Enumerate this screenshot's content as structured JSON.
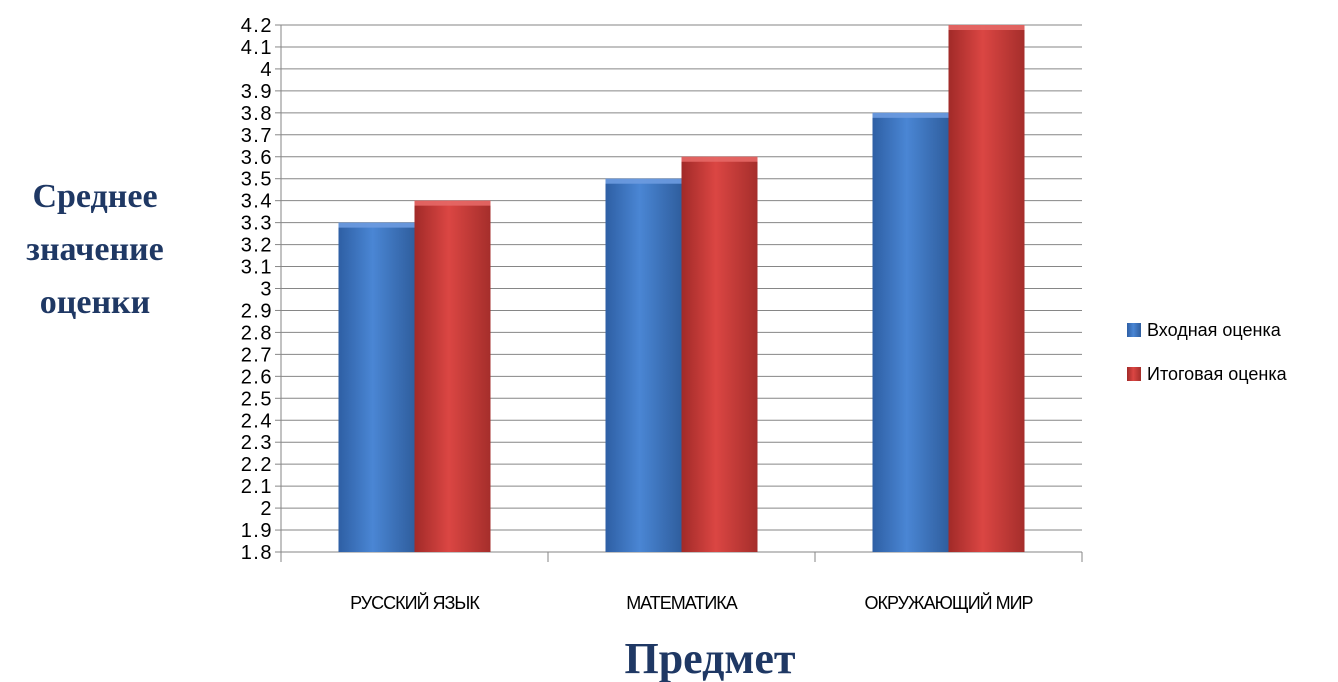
{
  "chart_data": {
    "type": "bar",
    "categories": [
      "РУССКИЙ ЯЗЫК",
      "МАТЕМАТИКА",
      "ОКРУЖАЮЩИЙ МИР"
    ],
    "series": [
      {
        "name": "Входная оценка",
        "values": [
          3.3,
          3.5,
          3.8
        ],
        "color": "#4f81bd"
      },
      {
        "name": "Итоговая оценка",
        "values": [
          3.4,
          3.6,
          4.2
        ],
        "color": "#c0504d"
      }
    ],
    "ylabel": [
      "Среднее",
      "значение",
      "оценки"
    ],
    "xlabel": "Предмет",
    "ylim": [
      1.8,
      4.2
    ],
    "yticks": [
      "1.8",
      "1.9",
      "2",
      "2.1",
      "2.2",
      "2.3",
      "2.4",
      "2.5",
      "2.6",
      "2.7",
      "2.8",
      "2.9",
      "3",
      "3.1",
      "3.2",
      "3.3",
      "3.4",
      "3.5",
      "3.6",
      "3.7",
      "3.8",
      "3.9",
      "4",
      "4.1",
      "4.2"
    ],
    "grid": true,
    "legend_position": "right"
  }
}
